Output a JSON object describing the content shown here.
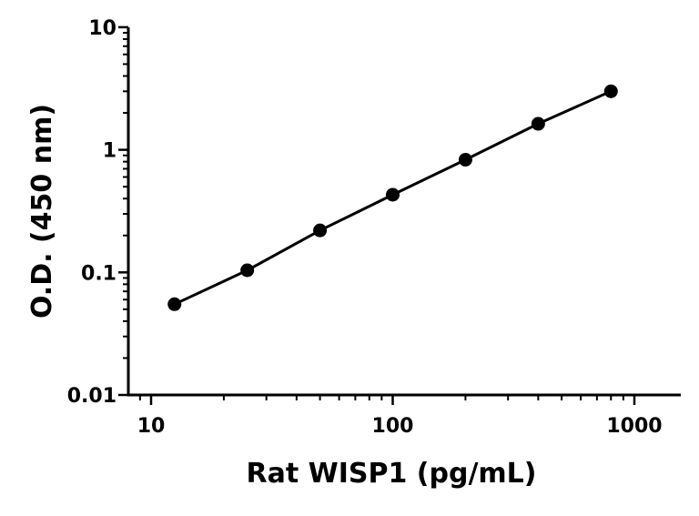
{
  "chart_data": {
    "type": "scatter",
    "xlabel": "Rat WISP1 (pg/mL)",
    "ylabel": "O.D. (450 nm)",
    "x_scale": "log",
    "y_scale": "log",
    "xlim": [
      7.5,
      1500
    ],
    "ylim": [
      0.01,
      10
    ],
    "x_ticks": [
      10,
      100,
      1000
    ],
    "x_tick_labels": [
      "10",
      "100",
      "1000"
    ],
    "y_ticks": [
      0.01,
      0.1,
      1,
      10
    ],
    "y_tick_labels": [
      "0.01",
      "0.1",
      "1",
      "10"
    ],
    "grid": false,
    "series": [
      {
        "x": [
          12.5,
          25,
          50,
          100,
          200,
          400,
          800
        ],
        "y": [
          0.055,
          0.104,
          0.22,
          0.43,
          0.83,
          1.63,
          3.0
        ],
        "fit_line": true
      }
    ]
  }
}
